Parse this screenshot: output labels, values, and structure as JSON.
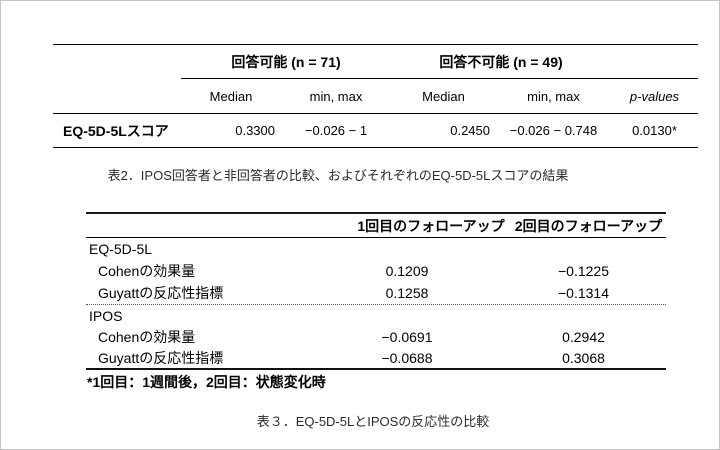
{
  "table1": {
    "group_headers": [
      "回答可能 (n = 71)",
      "回答不可能 (n = 49)"
    ],
    "col_headers": [
      "Median",
      "min, max",
      "Median",
      "min, max",
      "p-values"
    ],
    "row_label": "EQ-5D-5Lスコア",
    "row_values": [
      "0.3300",
      "−0.026 − 1",
      "0.2450",
      "−0.026 − 0.748",
      "0.0130*"
    ]
  },
  "caption_table2": "表2．IPOS回答者と非回答者の比較、およびそれぞれのEQ-5D-5Lスコアの結果",
  "table2": {
    "col_headers": [
      "1回目のフォローアップ",
      "2回目のフォローアップ"
    ],
    "sections": [
      {
        "name": "EQ-5D-5L",
        "rows": [
          {
            "label": "Cohenの効果量",
            "v1": "0.1209",
            "v2": "−0.1225"
          },
          {
            "label": "Guyattの反応性指標",
            "v1": "0.1258",
            "v2": "−0.1314"
          }
        ]
      },
      {
        "name": "IPOS",
        "rows": [
          {
            "label": "Cohenの効果量",
            "v1": "−0.0691",
            "v2": "0.2942"
          },
          {
            "label": "Guyattの反応性指標",
            "v1": "−0.0688",
            "v2": "0.3068"
          }
        ]
      }
    ],
    "footnote": "*1回目：1週間後，2回目：状態変化時"
  },
  "caption_table3": "表３．EQ-5D-5LとIPOSの反応性の比較"
}
